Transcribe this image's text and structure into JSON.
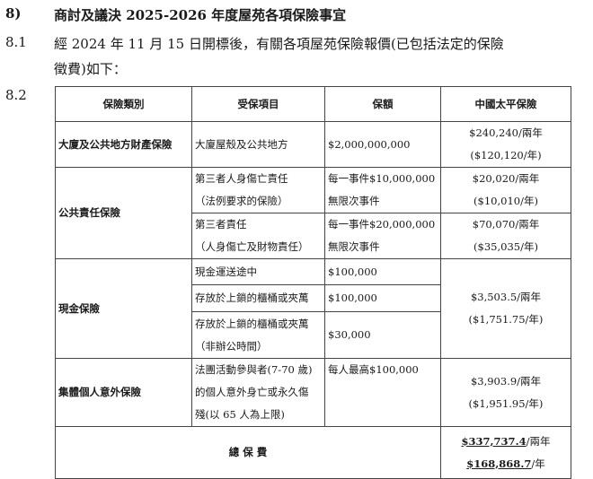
{
  "section": {
    "number": "8)",
    "title": "商討及議決 2025-2026 年度屋苑各項保險事宜"
  },
  "item_8_1": {
    "number": "8.1",
    "line1": "經 2024 年 11 月 15 日開標後，有關各項屋苑保險報價(已包括法定的保險",
    "line2": "徵費)如下："
  },
  "item_8_2": {
    "number": "8.2"
  },
  "table": {
    "headers": [
      "保險類別",
      "受保項目",
      "保額",
      "中國太平保險"
    ],
    "property": {
      "category": "大廈及公共地方財產保險",
      "item": "大廈屋殼及公共地方",
      "amount": "$2,000,000,000",
      "premium1": "$240,240/兩年",
      "premium2": "($120,120/年)"
    },
    "liability": {
      "category": "公共責任保險",
      "rows": [
        {
          "item1": "第三者人身傷亡責任",
          "item2": "（法例要求的保險）",
          "amount1": "每一事件$10,000,000",
          "amount2": "無限次事件",
          "premium1": "$20,020/兩年",
          "premium2": "($10,010/年)"
        },
        {
          "item1": "第三者責任",
          "item2": "（人身傷亡及財物責任）",
          "amount1": "每一事件$20,000,000",
          "amount2": "無限次事件",
          "premium1": "$70,070/兩年",
          "premium2": "($35,035/年)"
        }
      ]
    },
    "cash": {
      "category": "現金保險",
      "rows": [
        {
          "item1": "現金運送途中",
          "amount": "$100,000"
        },
        {
          "item1": "存放於上鎖的櫃桶或夾萬",
          "amount": "$100,000"
        },
        {
          "item1": "存放於上鎖的櫃桶或夾萬",
          "item2": "（非辦公時間）",
          "amount": "$30,000"
        }
      ],
      "premium1": "$3,503.5/兩年",
      "premium2": "($1,751.75/年)"
    },
    "accident": {
      "category": "集體個人意外保險",
      "item1": "法團活動參與者(7-70 歲)",
      "item2": "的個人意外身亡或永久傷",
      "item3": "殘(以 65 人為上限)",
      "amount": "每人最高$100,000",
      "premium1": "$3,903.9/兩年",
      "premium2": "($1,951.95/年)"
    },
    "total": {
      "label": "總 保 費",
      "amount1": "$337,737.4",
      "unit1": "/兩年",
      "amount2": "$168,868.7",
      "unit2": "/年"
    }
  }
}
